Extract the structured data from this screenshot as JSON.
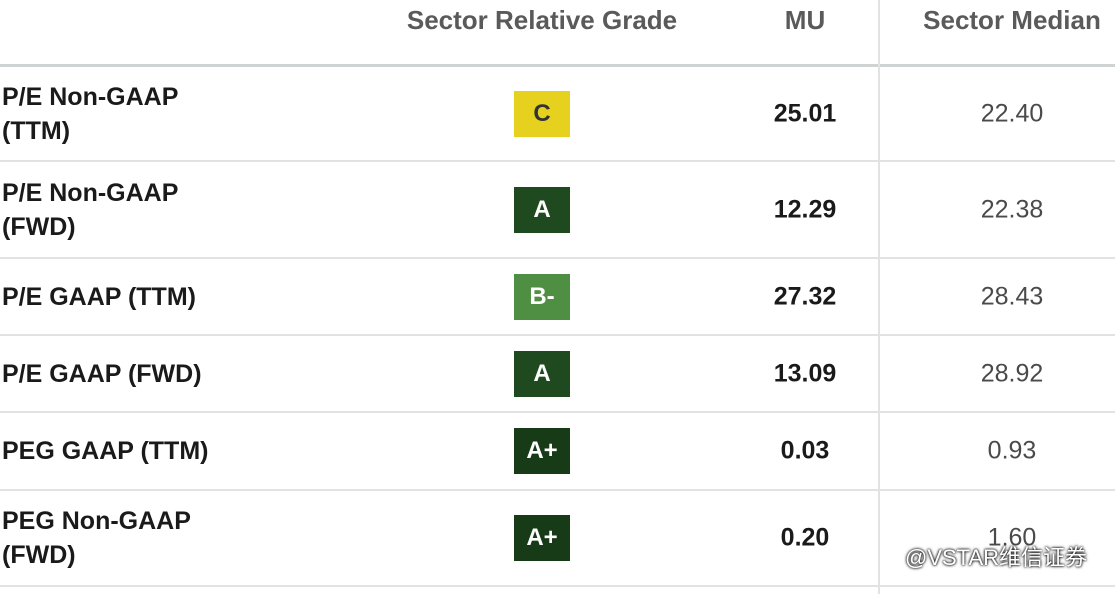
{
  "header": {
    "grade": "Sector Relative Grade",
    "ticker": "MU",
    "median": "Sector Median"
  },
  "rows": [
    {
      "metric": [
        "P/E Non-GAAP",
        "(TTM)"
      ],
      "grade": "C",
      "grade_color": "#e6d21e",
      "grade_text_color": "#333333",
      "value": "25.01",
      "median": "22.40"
    },
    {
      "metric": [
        "P/E Non-GAAP",
        "(FWD)"
      ],
      "grade": "A",
      "grade_color": "#1f4a1f",
      "grade_text_color": "#ffffff",
      "value": "12.29",
      "median": "22.38"
    },
    {
      "metric": [
        "P/E GAAP (TTM)"
      ],
      "grade": "B-",
      "grade_color": "#4f8f43",
      "grade_text_color": "#ffffff",
      "value": "27.32",
      "median": "28.43"
    },
    {
      "metric": [
        "P/E GAAP (FWD)"
      ],
      "grade": "A",
      "grade_color": "#1f4a1f",
      "grade_text_color": "#ffffff",
      "value": "13.09",
      "median": "28.92"
    },
    {
      "metric": [
        "PEG GAAP (TTM)"
      ],
      "grade": "A+",
      "grade_color": "#173a17",
      "grade_text_color": "#ffffff",
      "value": "0.03",
      "median": "0.93"
    },
    {
      "metric": [
        "PEG Non-GAAP",
        "(FWD)"
      ],
      "grade": "A+",
      "grade_color": "#173a17",
      "grade_text_color": "#ffffff",
      "value": "0.20",
      "median": "1.60"
    }
  ],
  "watermark": "@VSTAR维信证券"
}
